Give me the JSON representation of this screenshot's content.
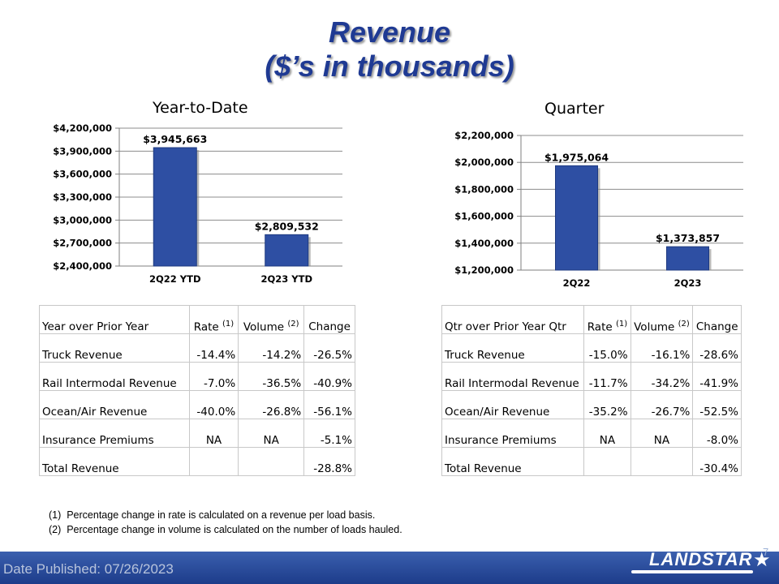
{
  "title": {
    "line1": "Revenue",
    "line2": "($’s in thousands)"
  },
  "chart_data": [
    {
      "type": "bar",
      "title": "Year-to-Date",
      "categories": [
        "2Q22 YTD",
        "2Q23 YTD"
      ],
      "values": [
        3945663,
        2809532
      ],
      "value_labels": [
        "$3,945,663",
        "$2,809,532"
      ],
      "ylim": [
        2400000,
        4200000
      ],
      "yticks": [
        2400000,
        2700000,
        3000000,
        3300000,
        3600000,
        3900000,
        4200000
      ],
      "ytick_labels": [
        "$2,400,000",
        "$2,700,000",
        "$3,000,000",
        "$3,300,000",
        "$3,600,000",
        "$3,900,000",
        "$4,200,000"
      ],
      "grid": true,
      "bar_color": "#2e4fa3"
    },
    {
      "type": "bar",
      "title": "Quarter",
      "categories": [
        "2Q22",
        "2Q23"
      ],
      "values": [
        1975064,
        1373857
      ],
      "value_labels": [
        "$1,975,064",
        "$1,373,857"
      ],
      "ylim": [
        1200000,
        2200000
      ],
      "yticks": [
        1200000,
        1400000,
        1600000,
        1800000,
        2000000,
        2200000
      ],
      "ytick_labels": [
        "$1,200,000",
        "$1,400,000",
        "$1,600,000",
        "$1,800,000",
        "$2,000,000",
        "$2,200,000"
      ],
      "grid": true,
      "bar_color": "#2e4fa3"
    }
  ],
  "tables": {
    "ytd": {
      "headers": [
        "Year over Prior Year",
        "Rate",
        "(1)",
        "Volume",
        "(2)",
        "Change"
      ],
      "rows": [
        [
          "Truck Revenue",
          "-14.4%",
          "-14.2%",
          "-26.5%"
        ],
        [
          "Rail Intermodal Revenue",
          "-7.0%",
          "-36.5%",
          "-40.9%"
        ],
        [
          "Ocean/Air Revenue",
          "-40.0%",
          "-26.8%",
          "-56.1%"
        ],
        [
          "Insurance Premiums",
          "NA",
          "NA",
          "-5.1%"
        ],
        [
          "Total Revenue",
          "",
          "",
          "-28.8%"
        ]
      ]
    },
    "qtr": {
      "headers": [
        "Qtr over Prior Year Qtr",
        "Rate",
        "(1)",
        "Volume",
        "(2)",
        "Change"
      ],
      "rows": [
        [
          "Truck Revenue",
          "-15.0%",
          "-16.1%",
          "-28.6%"
        ],
        [
          "Rail Intermodal Revenue",
          "-11.7%",
          "-34.2%",
          "-41.9%"
        ],
        [
          "Ocean/Air Revenue",
          "-35.2%",
          "-26.7%",
          "-52.5%"
        ],
        [
          "Insurance Premiums",
          "NA",
          "NA",
          "-8.0%"
        ],
        [
          "Total Revenue",
          "",
          "",
          "-30.4%"
        ]
      ]
    }
  },
  "footnotes": [
    "(1)  Percentage change in rate is calculated on a revenue per load basis.",
    "(2)  Percentage change in volume is calculated on the number of loads hauled."
  ],
  "footer": {
    "date": "Date Published:  07/26/2023",
    "logo": "LANDSTAR",
    "page_number": "7"
  },
  "icons": {
    "logo_star": "star-icon"
  }
}
